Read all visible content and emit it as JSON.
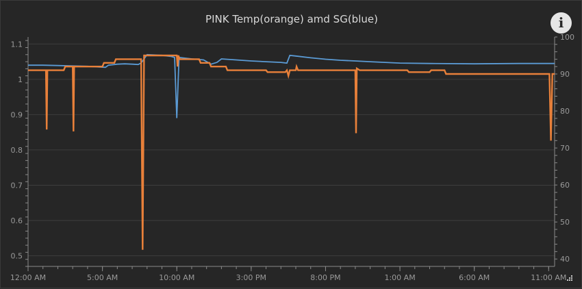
{
  "chart_data": {
    "type": "line",
    "title": "PINK Temp(orange) amd SG(blue)",
    "x_tick_labels": [
      "12:00 AM",
      "5:00 AM",
      "10:00 AM",
      "3:00 PM",
      "8:00 PM",
      "1:00 AM",
      "6:00 AM",
      "11:00 AM"
    ],
    "x_range_hours": [
      0,
      35.4
    ],
    "y_left": {
      "ticks": [
        "0.5",
        "0.6",
        "0.7",
        "0.8",
        "0.9",
        "1",
        "1.1"
      ],
      "range": [
        0.47,
        1.12
      ]
    },
    "y_right": {
      "ticks": [
        "40",
        "50",
        "60",
        "70",
        "80",
        "90",
        "100"
      ],
      "range": [
        38,
        100
      ]
    },
    "grid": true,
    "legend": "none",
    "series": [
      {
        "key": "sg",
        "axis": "left",
        "color": "#5b9bd5",
        "points": [
          [
            0.0,
            1.04
          ],
          [
            1.0,
            1.04
          ],
          [
            2.0,
            1.039
          ],
          [
            3.0,
            1.038
          ],
          [
            4.0,
            1.037
          ],
          [
            4.8,
            1.035
          ],
          [
            5.2,
            1.034
          ],
          [
            5.4,
            1.04
          ],
          [
            6.0,
            1.043
          ],
          [
            6.5,
            1.044
          ],
          [
            7.0,
            1.043
          ],
          [
            7.4,
            1.042
          ],
          [
            7.6,
            1.046
          ],
          [
            8.0,
            1.07
          ],
          [
            9.0,
            1.068
          ],
          [
            9.6,
            1.065
          ],
          [
            9.85,
            1.062
          ],
          [
            10.0,
            0.89
          ],
          [
            10.15,
            1.062
          ],
          [
            11.0,
            1.058
          ],
          [
            11.8,
            1.055
          ],
          [
            12.3,
            1.043
          ],
          [
            12.7,
            1.048
          ],
          [
            13.0,
            1.058
          ],
          [
            14.0,
            1.055
          ],
          [
            15.0,
            1.052
          ],
          [
            16.0,
            1.05
          ],
          [
            17.0,
            1.048
          ],
          [
            17.4,
            1.046
          ],
          [
            17.6,
            1.068
          ],
          [
            18.0,
            1.066
          ],
          [
            19.0,
            1.061
          ],
          [
            20.0,
            1.057
          ],
          [
            21.0,
            1.054
          ],
          [
            22.0,
            1.052
          ],
          [
            23.0,
            1.05
          ],
          [
            24.0,
            1.048
          ],
          [
            25.0,
            1.046
          ],
          [
            27.0,
            1.045
          ],
          [
            30.0,
            1.044
          ],
          [
            33.0,
            1.045
          ],
          [
            35.4,
            1.045
          ]
        ]
      },
      {
        "key": "temp",
        "axis": "right",
        "color": "#e8803a",
        "points": [
          [
            0.0,
            91.0
          ],
          [
            1.2,
            91.0
          ],
          [
            1.25,
            75.0
          ],
          [
            1.3,
            91.0
          ],
          [
            2.4,
            91.0
          ],
          [
            2.5,
            92.0
          ],
          [
            3.0,
            92.0
          ],
          [
            3.05,
            74.5
          ],
          [
            3.1,
            92.0
          ],
          [
            5.0,
            92.0
          ],
          [
            5.1,
            93.0
          ],
          [
            5.8,
            93.0
          ],
          [
            5.9,
            94.0
          ],
          [
            7.6,
            94.0
          ],
          [
            7.7,
            42.5
          ],
          [
            7.8,
            95.0
          ],
          [
            10.0,
            95.0
          ],
          [
            10.05,
            92.0
          ],
          [
            10.1,
            95.0
          ],
          [
            10.2,
            94.0
          ],
          [
            11.5,
            94.0
          ],
          [
            11.6,
            93.0
          ],
          [
            12.2,
            93.0
          ],
          [
            12.3,
            92.0
          ],
          [
            13.3,
            92.0
          ],
          [
            13.4,
            91.0
          ],
          [
            16.0,
            91.0
          ],
          [
            16.1,
            90.5
          ],
          [
            17.3,
            90.5
          ],
          [
            17.4,
            91.0
          ],
          [
            17.5,
            89.5
          ],
          [
            17.6,
            91.0
          ],
          [
            18.0,
            91.0
          ],
          [
            18.05,
            92.0
          ],
          [
            18.15,
            91.0
          ],
          [
            22.0,
            91.0
          ],
          [
            22.05,
            74.0
          ],
          [
            22.1,
            91.5
          ],
          [
            22.3,
            91.0
          ],
          [
            25.5,
            91.0
          ],
          [
            25.6,
            90.5
          ],
          [
            27.0,
            90.5
          ],
          [
            27.1,
            91.0
          ],
          [
            28.0,
            91.0
          ],
          [
            28.1,
            90.0
          ],
          [
            35.05,
            90.0
          ],
          [
            35.15,
            72.0
          ],
          [
            35.25,
            90.0
          ],
          [
            35.4,
            90.0
          ]
        ]
      }
    ]
  },
  "icons": {
    "info": "info-icon",
    "resize": "resize-grip-icon"
  },
  "info_glyph": "i"
}
